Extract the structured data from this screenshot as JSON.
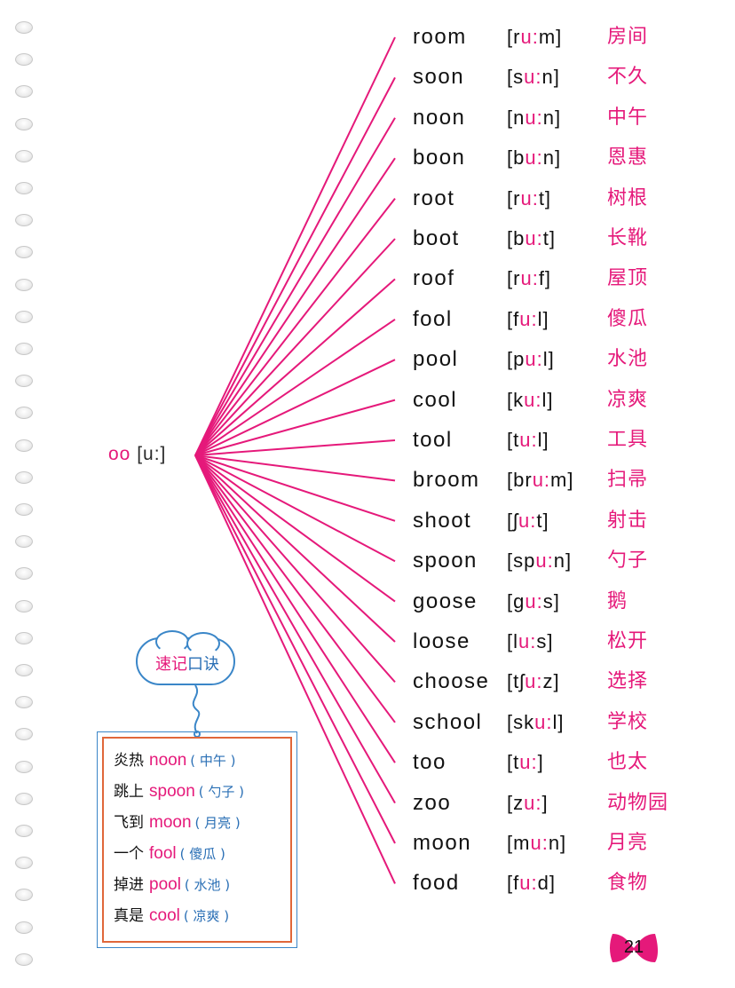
{
  "root": {
    "graphemes": "oo",
    "ipa": "[u:]"
  },
  "vowel_mark": "u:",
  "colors": {
    "pink": "#e5197a",
    "blue": "#2a6fb5",
    "frame": "#e0673a",
    "ink": "#111111"
  },
  "words": [
    {
      "word": "room",
      "ipa": "[ru:m]",
      "meaning": "房间"
    },
    {
      "word": "soon",
      "ipa": "[su:n]",
      "meaning": "不久"
    },
    {
      "word": "noon",
      "ipa": "[nu:n]",
      "meaning": "中午"
    },
    {
      "word": "boon",
      "ipa": "[bu:n]",
      "meaning": "恩惠"
    },
    {
      "word": "root",
      "ipa": "[ru:t]",
      "meaning": "树根"
    },
    {
      "word": "boot",
      "ipa": "[bu:t]",
      "meaning": "长靴"
    },
    {
      "word": "roof",
      "ipa": "[ru:f]",
      "meaning": "屋顶"
    },
    {
      "word": "fool",
      "ipa": "[fu:l]",
      "meaning": "傻瓜"
    },
    {
      "word": "pool",
      "ipa": "[pu:l]",
      "meaning": "水池"
    },
    {
      "word": "cool",
      "ipa": "[ku:l]",
      "meaning": "凉爽"
    },
    {
      "word": "tool",
      "ipa": "[tu:l]",
      "meaning": "工具"
    },
    {
      "word": "broom",
      "ipa": "[bru:m]",
      "meaning": "扫帚"
    },
    {
      "word": "shoot",
      "ipa": "[ʃu:t]",
      "meaning": "射击"
    },
    {
      "word": "spoon",
      "ipa": "[spu:n]",
      "meaning": "勺子"
    },
    {
      "word": "goose",
      "ipa": "[gu:s]",
      "meaning": "鹅"
    },
    {
      "word": "loose",
      "ipa": "[lu:s]",
      "meaning": "松开"
    },
    {
      "word": "choose",
      "ipa": "[tʃu:z]",
      "meaning": "选择"
    },
    {
      "word": "school",
      "ipa": "[sku:l]",
      "meaning": "学校"
    },
    {
      "word": "too",
      "ipa": "[tu:]",
      "meaning": "也太"
    },
    {
      "word": "zoo",
      "ipa": "[zu:]",
      "meaning": "动物园"
    },
    {
      "word": "moon",
      "ipa": "[mu:n]",
      "meaning": "月亮"
    },
    {
      "word": "food",
      "ipa": "[fu:d]",
      "meaning": "食物"
    }
  ],
  "mnemonic": {
    "title_part1": "速记",
    "title_part2": "口诀",
    "lines": [
      {
        "prefix": "炎热",
        "word": "noon",
        "translation": "( 中午 )"
      },
      {
        "prefix": "跳上",
        "word": "spoon",
        "translation": "( 勺子 )"
      },
      {
        "prefix": "飞到",
        "word": "moon",
        "translation": "( 月亮 )"
      },
      {
        "prefix": "一个",
        "word": "fool",
        "translation": "( 傻瓜 )"
      },
      {
        "prefix": "掉进",
        "word": "pool",
        "translation": "( 水池 )"
      },
      {
        "prefix": "真是",
        "word": "cool",
        "translation": "( 凉爽 )"
      }
    ]
  },
  "page_number": "21"
}
